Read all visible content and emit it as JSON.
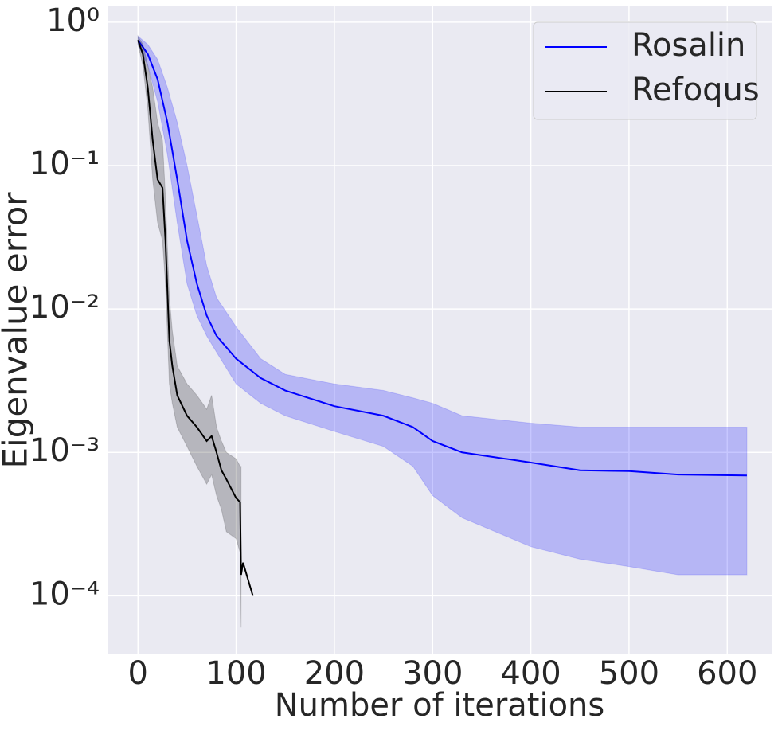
{
  "chart_data": {
    "type": "line",
    "xlabel": "Number of iterations",
    "ylabel": "Eigenvalue error",
    "xlim": [
      -31,
      646
    ],
    "xticks": [
      0,
      100,
      200,
      300,
      400,
      500,
      600
    ],
    "ylim": [
      3.9e-05,
      1.29
    ],
    "log_y": true,
    "grid": true,
    "legend": "upper right",
    "yticks": [
      {
        "value": 1,
        "label": "10⁰"
      },
      {
        "value": 0.1,
        "label": "10⁻¹"
      },
      {
        "value": 0.01,
        "label": "10⁻²"
      },
      {
        "value": 0.001,
        "label": "10⁻³"
      },
      {
        "value": 0.0001,
        "label": "10⁻⁴"
      }
    ],
    "series": [
      {
        "name": "Rosalin",
        "color": "#0000ff",
        "x": [
          0,
          10,
          20,
          30,
          40,
          50,
          60,
          70,
          80,
          100,
          125,
          150,
          200,
          250,
          280,
          300,
          330,
          400,
          450,
          500,
          550,
          620
        ],
        "values": [
          0.75,
          0.6,
          0.4,
          0.2,
          0.08,
          0.03,
          0.015,
          0.009,
          0.0065,
          0.0045,
          0.0033,
          0.0027,
          0.0021,
          0.0018,
          0.0015,
          0.0012,
          0.001,
          0.00085,
          0.00075,
          0.00074,
          0.0007,
          0.00069
        ],
        "upper": [
          0.8,
          0.7,
          0.55,
          0.35,
          0.2,
          0.1,
          0.045,
          0.02,
          0.012,
          0.0075,
          0.0045,
          0.0035,
          0.003,
          0.0027,
          0.0024,
          0.0022,
          0.0018,
          0.0016,
          0.0015,
          0.0015,
          0.0015,
          0.0015
        ],
        "lower": [
          0.7,
          0.5,
          0.28,
          0.12,
          0.04,
          0.015,
          0.009,
          0.0065,
          0.005,
          0.003,
          0.0022,
          0.0018,
          0.0014,
          0.0011,
          0.0008,
          0.0005,
          0.00035,
          0.00022,
          0.00018,
          0.00016,
          0.00014,
          0.00014
        ]
      },
      {
        "name": "Refoqus",
        "color": "#000000",
        "x": [
          0,
          5,
          10,
          15,
          20,
          25,
          28,
          32,
          35,
          40,
          50,
          60,
          70,
          75,
          80,
          85,
          90,
          100,
          104,
          105,
          107,
          117
        ],
        "values": [
          0.75,
          0.6,
          0.35,
          0.15,
          0.08,
          0.07,
          0.03,
          0.006,
          0.004,
          0.0025,
          0.0018,
          0.0015,
          0.0012,
          0.0013,
          0.001,
          0.00075,
          0.00065,
          0.00048,
          0.00045,
          0.00014,
          0.00017,
          0.0001
        ],
        "upper": [
          0.8,
          0.7,
          0.5,
          0.35,
          0.2,
          0.15,
          0.06,
          0.012,
          0.007,
          0.004,
          0.003,
          0.0025,
          0.002,
          0.0025,
          0.0015,
          0.0012,
          0.001,
          0.0009,
          0.0008,
          0.0008,
          null,
          null
        ],
        "lower": [
          0.7,
          0.5,
          0.25,
          0.08,
          0.04,
          0.03,
          0.015,
          0.003,
          0.0022,
          0.0015,
          0.0011,
          0.0008,
          0.0006,
          0.0007,
          0.0005,
          0.0004,
          0.00028,
          0.00025,
          0.0002,
          6e-05,
          null,
          null
        ]
      }
    ]
  }
}
